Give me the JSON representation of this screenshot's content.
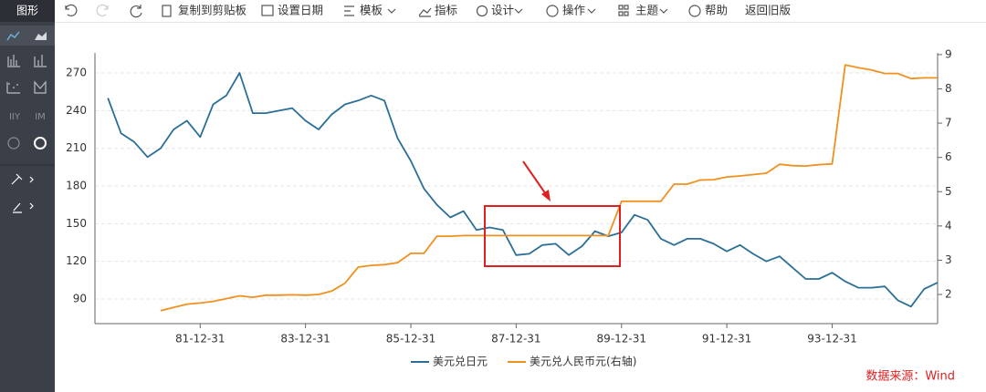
{
  "sidebar_title": "图形",
  "toolbar": [
    "复制到剪贴板",
    "设置日期",
    "模板",
    "指标",
    "设计",
    "操作",
    "主题",
    "帮助",
    "返回旧版"
  ],
  "source": "数据来源：Wind",
  "chart_data": {
    "type": "line",
    "x": [
      "80-03-31",
      "80-06-30",
      "80-09-30",
      "80-12-31",
      "81-03-31",
      "81-06-30",
      "81-09-30",
      "81-12-31",
      "82-03-31",
      "82-06-30",
      "82-09-30",
      "82-12-31",
      "83-03-31",
      "83-06-30",
      "83-09-30",
      "83-12-31",
      "84-03-31",
      "84-06-30",
      "84-09-30",
      "84-12-31",
      "85-03-31",
      "85-06-30",
      "85-09-30",
      "85-12-31",
      "86-03-31",
      "86-06-30",
      "86-09-30",
      "86-12-31",
      "87-03-31",
      "87-06-30",
      "87-09-30",
      "87-12-31",
      "88-03-31",
      "88-06-30",
      "88-09-30",
      "88-12-31",
      "89-03-31",
      "89-06-30",
      "89-09-30",
      "89-12-31",
      "90-03-31",
      "90-06-30",
      "90-09-30",
      "90-12-31",
      "91-03-31",
      "91-06-30",
      "91-09-30",
      "91-12-31",
      "92-03-31",
      "92-06-30",
      "92-09-30",
      "92-12-31",
      "93-03-31",
      "93-06-30",
      "93-09-30",
      "93-12-31",
      "94-03-31",
      "94-06-30",
      "94-09-30",
      "94-12-31",
      "95-03-31",
      "95-06-30",
      "95-09-30",
      "95-12-31"
    ],
    "series": [
      {
        "name": "美元兑日元",
        "color": "#2a6f97",
        "values": [
          250,
          222,
          215,
          203,
          210,
          225,
          232,
          219,
          245,
          252,
          270,
          238,
          238,
          240,
          242,
          232,
          225,
          237,
          245,
          248,
          252,
          248,
          218,
          200,
          178,
          165,
          155,
          160,
          145,
          147,
          145,
          125,
          126,
          133,
          134,
          125,
          132,
          144,
          140,
          143,
          157,
          153,
          138,
          133,
          138,
          138,
          134,
          128,
          133,
          126,
          120,
          124,
          115,
          106,
          106,
          111,
          104,
          99,
          99,
          100,
          89,
          84,
          98,
          103
        ]
      },
      {
        "name": "美元兑人民币元(右轴)",
        "color": "#f0901e",
        "axis": "y2",
        "values": [
          null,
          null,
          null,
          null,
          1.53,
          1.62,
          1.72,
          1.75,
          1.8,
          1.88,
          1.96,
          1.92,
          1.98,
          1.98,
          1.99,
          1.98,
          2.0,
          2.1,
          2.33,
          2.8,
          2.85,
          2.87,
          2.93,
          3.2,
          3.2,
          3.7,
          3.7,
          3.72,
          3.72,
          3.72,
          3.72,
          3.72,
          3.72,
          3.72,
          3.72,
          3.72,
          3.72,
          3.72,
          3.72,
          4.72,
          4.72,
          4.72,
          4.72,
          5.22,
          5.22,
          5.34,
          5.35,
          5.43,
          5.46,
          5.5,
          5.54,
          5.8,
          5.76,
          5.75,
          5.79,
          5.81,
          8.7,
          8.62,
          8.55,
          8.45,
          8.45,
          8.3,
          8.32,
          8.32
        ]
      }
    ],
    "xlim": [
      "80-01-01",
      "96-01-01"
    ],
    "xticks": [
      "81-12-31",
      "83-12-31",
      "85-12-31",
      "87-12-31",
      "89-12-31",
      "91-12-31",
      "93-12-31"
    ],
    "ylim": [
      70.4,
      286
    ],
    "yticks": [
      90,
      120,
      150,
      180,
      210,
      240,
      270
    ],
    "y2lim": [
      1.15,
      9.05
    ],
    "y2ticks": [
      2,
      3,
      4,
      5,
      6,
      7,
      8,
      9
    ],
    "grid": true,
    "legend": "bottom"
  }
}
